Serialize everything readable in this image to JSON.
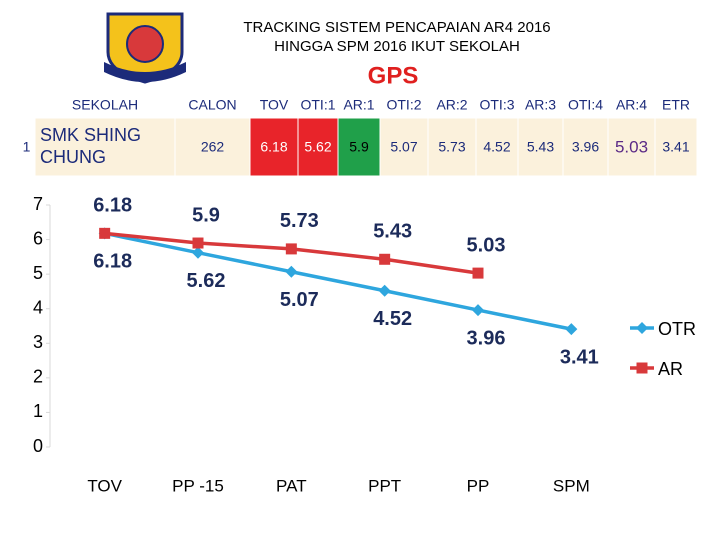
{
  "header": {
    "title_lines": [
      "TRACKING SISTEM PENCAPAIAN AR4  2016",
      "HINGGA SPM 2016 IKUT SEKOLAH"
    ],
    "subtitle": "GPS"
  },
  "table": {
    "header": [
      "SEKOLAH",
      "CALON",
      "TOV",
      "OTI:1",
      "AR:1",
      "OTI:2",
      "AR:2",
      "OTI:3",
      "AR:3",
      "OTI:4",
      "AR:4",
      "ETR"
    ],
    "rows": [
      [
        "1",
        "SMK SHING CHUNG",
        262,
        6.18,
        5.62,
        5.9,
        5.07,
        5.73,
        4.52,
        5.43,
        3.96,
        5.03,
        3.41
      ]
    ]
  },
  "chart_data": {
    "type": "line",
    "categories": [
      "TOV",
      "PP -15",
      "PAT",
      "PPT",
      "PP",
      "SPM"
    ],
    "series": [
      {
        "name": "OTR",
        "color": "#2ea6de",
        "values": [
          6.18,
          5.62,
          5.07,
          4.52,
          3.96,
          3.41
        ]
      },
      {
        "name": "AR",
        "color": "#d8393b",
        "values": [
          6.18,
          5.9,
          5.73,
          5.43,
          5.03,
          null
        ]
      }
    ],
    "ylim": [
      0,
      7
    ],
    "yticks": [
      0,
      1,
      2,
      3,
      4,
      5,
      6,
      7
    ],
    "grid": false,
    "legend": "right"
  }
}
